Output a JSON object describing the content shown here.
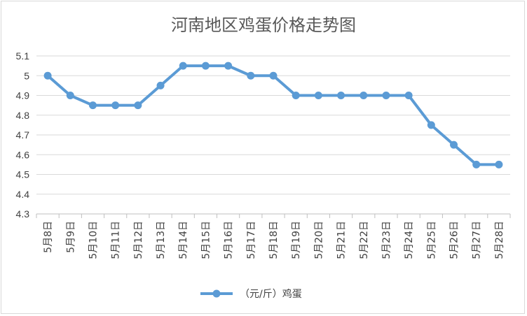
{
  "colors": {
    "series": "#5b9bd5"
  },
  "chart_data": {
    "type": "line",
    "title": "河南地区鸡蛋价格走势图",
    "xlabel": "",
    "ylabel": "",
    "categories": [
      "5月8日",
      "5月9日",
      "5月10日",
      "5月11日",
      "5月12日",
      "5月13日",
      "5月14日",
      "5月15日",
      "5月16日",
      "5月17日",
      "5月18日",
      "5月19日",
      "5月20日",
      "5月21日",
      "5月22日",
      "5月23日",
      "5月24日",
      "5月25日",
      "5月26日",
      "5月27日",
      "5月28日"
    ],
    "series": [
      {
        "name": "（元/斤）鸡蛋",
        "values": [
          5.0,
          4.9,
          4.85,
          4.85,
          4.85,
          4.95,
          5.05,
          5.05,
          5.05,
          5.0,
          5.0,
          4.9,
          4.9,
          4.9,
          4.9,
          4.9,
          4.9,
          4.75,
          4.65,
          4.55,
          4.55
        ]
      }
    ],
    "ylim": [
      4.3,
      5.1
    ],
    "yticks": [
      "4.3",
      "4.4",
      "4.5",
      "4.6",
      "4.7",
      "4.8",
      "4.9",
      "5",
      "5.1"
    ],
    "grid": true,
    "legend": "bottom"
  }
}
